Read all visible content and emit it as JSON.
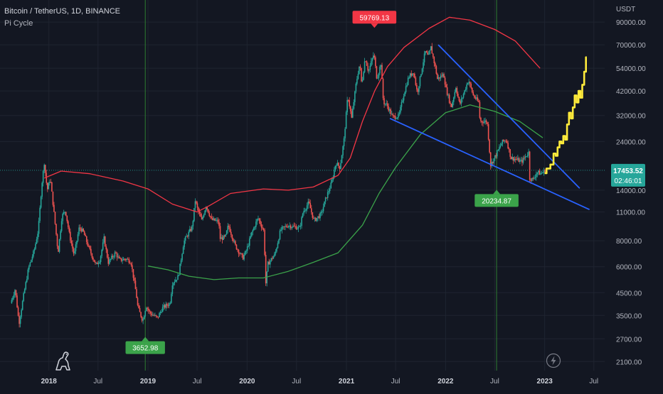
{
  "header": {
    "symbol_title": "Bitcoin / TetherUS, 1D, BINANCE",
    "indicator_title": "Pi Cycle"
  },
  "colors": {
    "background": "#131722",
    "grid": "#1f2430",
    "text": "#b2b5be",
    "candle_up": "#26a69a",
    "candle_down": "#ef5350",
    "pi_upper": "#f23645",
    "pi_lower": "#3ba34a",
    "trendline": "#2962ff",
    "projection": "#ffeb3b",
    "price_label": "#26a69a",
    "vline": "#2e7d32"
  },
  "icons": {
    "logo": "dino-logo-icon",
    "lightning": "lightning-icon"
  },
  "chart_data": {
    "type": "candlestick",
    "title": "Bitcoin / TetherUS, 1D, BINANCE",
    "scale": "log",
    "y_unit": "USDT",
    "y_ticks": [
      "90000.00",
      "70000.00",
      "54000.00",
      "42000.00",
      "32000.00",
      "24000.00",
      "14000.00",
      "11000.00",
      "8000.00",
      "6000.00",
      "4500.00",
      "3500.00",
      "2700.00",
      "2100.00"
    ],
    "y_tick_values": [
      90000,
      70000,
      54000,
      42000,
      32000,
      24000,
      14000,
      11000,
      8000,
      6000,
      4500,
      3500,
      2700,
      2100
    ],
    "x_ticks": [
      {
        "label": "2018",
        "date": "2018-01-01"
      },
      {
        "label": "Jul",
        "date": "2018-07-01"
      },
      {
        "label": "2019",
        "date": "2019-01-01"
      },
      {
        "label": "Jul",
        "date": "2019-07-01"
      },
      {
        "label": "2020",
        "date": "2020-01-01"
      },
      {
        "label": "Jul",
        "date": "2020-07-01"
      },
      {
        "label": "2021",
        "date": "2021-01-01"
      },
      {
        "label": "Jul",
        "date": "2021-07-01"
      },
      {
        "label": "2022",
        "date": "2022-01-01"
      },
      {
        "label": "Jul",
        "date": "2022-07-01"
      },
      {
        "label": "2023",
        "date": "2023-01-01"
      },
      {
        "label": "Jul",
        "date": "2023-07-01"
      }
    ],
    "x_range": [
      "2017-07-05",
      "2023-08-10"
    ],
    "y_range": [
      1900,
      115000
    ],
    "last_price": {
      "value": "17453.52",
      "countdown": "02:46:01"
    },
    "price_path": [
      [
        "2017-08-15",
        4000
      ],
      [
        "2017-09-01",
        4700
      ],
      [
        "2017-09-15",
        3200
      ],
      [
        "2017-10-01",
        4300
      ],
      [
        "2017-10-20",
        5900
      ],
      [
        "2017-11-10",
        7200
      ],
      [
        "2017-11-25",
        9000
      ],
      [
        "2017-12-08",
        15000
      ],
      [
        "2017-12-17",
        19000
      ],
      [
        "2017-12-28",
        14000
      ],
      [
        "2018-01-08",
        16000
      ],
      [
        "2018-01-20",
        11500
      ],
      [
        "2018-02-06",
        7000
      ],
      [
        "2018-02-20",
        10500
      ],
      [
        "2018-03-05",
        11200
      ],
      [
        "2018-03-20",
        8500
      ],
      [
        "2018-04-06",
        6800
      ],
      [
        "2018-04-25",
        9300
      ],
      [
        "2018-05-10",
        8800
      ],
      [
        "2018-05-30",
        7400
      ],
      [
        "2018-06-25",
        6100
      ],
      [
        "2018-07-10",
        6500
      ],
      [
        "2018-07-25",
        8200
      ],
      [
        "2018-08-10",
        6300
      ],
      [
        "2018-09-05",
        7000
      ],
      [
        "2018-09-20",
        6450
      ],
      [
        "2018-10-15",
        6550
      ],
      [
        "2018-11-01",
        6350
      ],
      [
        "2018-11-20",
        4500
      ],
      [
        "2018-11-27",
        3800
      ],
      [
        "2018-12-15",
        3300
      ],
      [
        "2018-12-27",
        3900
      ],
      [
        "2019-01-10",
        3600
      ],
      [
        "2019-02-07",
        3400
      ],
      [
        "2019-02-25",
        3800
      ],
      [
        "2019-03-25",
        4000
      ],
      [
        "2019-04-03",
        5000
      ],
      [
        "2019-04-25",
        5400
      ],
      [
        "2019-05-15",
        7900
      ],
      [
        "2019-05-30",
        8600
      ],
      [
        "2019-06-15",
        9300
      ],
      [
        "2019-06-26",
        12500
      ],
      [
        "2019-07-05",
        11300
      ],
      [
        "2019-07-20",
        10000
      ],
      [
        "2019-08-05",
        11800
      ],
      [
        "2019-08-25",
        10100
      ],
      [
        "2019-09-20",
        9900
      ],
      [
        "2019-09-26",
        8200
      ],
      [
        "2019-10-15",
        8300
      ],
      [
        "2019-10-26",
        9500
      ],
      [
        "2019-11-20",
        7600
      ],
      [
        "2019-12-18",
        6600
      ],
      [
        "2020-01-01",
        7200
      ],
      [
        "2020-01-20",
        8700
      ],
      [
        "2020-02-12",
        10300
      ],
      [
        "2020-03-05",
        8900
      ],
      [
        "2020-03-12",
        5000
      ],
      [
        "2020-03-20",
        6200
      ],
      [
        "2020-04-15",
        6900
      ],
      [
        "2020-05-05",
        9000
      ],
      [
        "2020-06-01",
        9500
      ],
      [
        "2020-07-15",
        9200
      ],
      [
        "2020-07-27",
        11000
      ],
      [
        "2020-08-17",
        12200
      ],
      [
        "2020-09-05",
        10000
      ],
      [
        "2020-10-01",
        10700
      ],
      [
        "2020-10-21",
        13000
      ],
      [
        "2020-11-10",
        15300
      ],
      [
        "2020-11-25",
        19000
      ],
      [
        "2020-12-10",
        18000
      ],
      [
        "2020-12-25",
        24500
      ],
      [
        "2021-01-08",
        40000
      ],
      [
        "2021-01-22",
        31000
      ],
      [
        "2021-02-08",
        46000
      ],
      [
        "2021-02-21",
        57000
      ],
      [
        "2021-02-28",
        45000
      ],
      [
        "2021-03-13",
        61000
      ],
      [
        "2021-03-25",
        52000
      ],
      [
        "2021-04-14",
        63500
      ],
      [
        "2021-04-25",
        48000
      ],
      [
        "2021-05-10",
        57000
      ],
      [
        "2021-05-19",
        37000
      ],
      [
        "2021-06-01",
        36000
      ],
      [
        "2021-06-22",
        31500
      ],
      [
        "2021-07-15",
        31800
      ],
      [
        "2021-08-01",
        40000
      ],
      [
        "2021-08-20",
        49000
      ],
      [
        "2021-09-07",
        52000
      ],
      [
        "2021-09-21",
        41000
      ],
      [
        "2021-10-08",
        54000
      ],
      [
        "2021-10-20",
        65000
      ],
      [
        "2021-11-01",
        61000
      ],
      [
        "2021-11-10",
        68000
      ],
      [
        "2021-11-27",
        54000
      ],
      [
        "2021-12-04",
        48000
      ],
      [
        "2021-12-27",
        50500
      ],
      [
        "2022-01-05",
        43000
      ],
      [
        "2022-01-24",
        35000
      ],
      [
        "2022-02-10",
        44000
      ],
      [
        "2022-02-24",
        36000
      ],
      [
        "2022-03-28",
        47500
      ],
      [
        "2022-04-15",
        40000
      ],
      [
        "2022-05-05",
        37000
      ],
      [
        "2022-05-10",
        30000
      ],
      [
        "2022-06-05",
        30000
      ],
      [
        "2022-06-13",
        22500
      ],
      [
        "2022-06-18",
        18500
      ],
      [
        "2022-07-10",
        21000
      ],
      [
        "2022-07-30",
        23800
      ],
      [
        "2022-08-15",
        24500
      ],
      [
        "2022-09-01",
        20000
      ],
      [
        "2022-09-15",
        19800
      ],
      [
        "2022-10-10",
        19200
      ],
      [
        "2022-11-05",
        21300
      ],
      [
        "2022-11-09",
        16000
      ],
      [
        "2022-11-21",
        15700
      ],
      [
        "2022-12-05",
        17100
      ],
      [
        "2022-12-20",
        16800
      ],
      [
        "2023-01-05",
        17453
      ]
    ],
    "pi_cycle_upper": {
      "name": "Pi Cycle upper",
      "points": [
        [
          "2017-12-15",
          16000
        ],
        [
          "2018-02-15",
          17300
        ],
        [
          "2018-06-01",
          16800
        ],
        [
          "2018-10-01",
          15500
        ],
        [
          "2019-01-01",
          14200
        ],
        [
          "2019-04-01",
          12000
        ],
        [
          "2019-07-01",
          11000
        ],
        [
          "2019-08-15",
          11800
        ],
        [
          "2019-11-01",
          13500
        ],
        [
          "2020-03-01",
          14200
        ],
        [
          "2020-06-01",
          14000
        ],
        [
          "2020-09-01",
          14500
        ],
        [
          "2020-12-01",
          16500
        ],
        [
          "2021-01-15",
          20000
        ],
        [
          "2021-03-01",
          30000
        ],
        [
          "2021-04-15",
          42000
        ],
        [
          "2021-06-01",
          55000
        ],
        [
          "2021-08-01",
          68000
        ],
        [
          "2021-11-01",
          84000
        ],
        [
          "2022-01-15",
          95000
        ],
        [
          "2022-04-01",
          92000
        ],
        [
          "2022-07-01",
          83000
        ],
        [
          "2022-09-15",
          73000
        ],
        [
          "2022-12-15",
          54000
        ]
      ]
    },
    "pi_cycle_lower": {
      "name": "Pi Cycle lower",
      "points": [
        [
          "2019-01-01",
          6050
        ],
        [
          "2019-03-15",
          5800
        ],
        [
          "2019-06-01",
          5400
        ],
        [
          "2019-09-01",
          5200
        ],
        [
          "2019-12-01",
          5300
        ],
        [
          "2020-03-01",
          5300
        ],
        [
          "2020-06-01",
          5700
        ],
        [
          "2020-09-01",
          6300
        ],
        [
          "2020-12-01",
          7000
        ],
        [
          "2021-03-01",
          9500
        ],
        [
          "2021-05-01",
          13500
        ],
        [
          "2021-07-01",
          18000
        ],
        [
          "2021-10-01",
          26000
        ],
        [
          "2022-01-01",
          33000
        ],
        [
          "2022-04-01",
          36000
        ],
        [
          "2022-07-01",
          33500
        ],
        [
          "2022-10-01",
          30000
        ],
        [
          "2022-12-25",
          25000
        ]
      ]
    },
    "trendlines": [
      {
        "start": [
          "2021-12-05",
          70000
        ],
        "end": [
          "2023-05-10",
          14300
        ]
      },
      {
        "start": [
          "2021-06-10",
          31000
        ],
        "end": [
          "2023-06-15",
          11300
        ]
      }
    ],
    "projection": [
      [
        "2023-01-01",
        16900
      ],
      [
        "2023-01-15",
        17800
      ],
      [
        "2023-01-29",
        18600
      ],
      [
        "2023-02-07",
        21000
      ],
      [
        "2023-02-14",
        20500
      ],
      [
        "2023-02-21",
        22500
      ],
      [
        "2023-02-28",
        24000
      ],
      [
        "2023-03-07",
        23500
      ],
      [
        "2023-03-14",
        25500
      ],
      [
        "2023-03-21",
        24500
      ],
      [
        "2023-03-28",
        29000
      ],
      [
        "2023-04-04",
        33000
      ],
      [
        "2023-04-11",
        31000
      ],
      [
        "2023-04-18",
        35000
      ],
      [
        "2023-04-25",
        40000
      ],
      [
        "2023-05-02",
        37000
      ],
      [
        "2023-05-09",
        42000
      ],
      [
        "2023-05-16",
        39000
      ],
      [
        "2023-05-23",
        45000
      ],
      [
        "2023-05-30",
        52000
      ],
      [
        "2023-06-05",
        61000
      ]
    ],
    "vertical_markers": [
      {
        "date": "2018-12-22",
        "label": "3652.98",
        "label_price": 2450,
        "color": "#3ba34a"
      },
      {
        "date": "2022-07-08",
        "label": "20234.87",
        "label_price": 12500,
        "color": "#3ba34a"
      }
    ],
    "top_marker": {
      "date": "2021-04-14",
      "label": "59769.13",
      "label_price": 95000,
      "color": "#f23645"
    },
    "price_line_value": 17453.52
  }
}
